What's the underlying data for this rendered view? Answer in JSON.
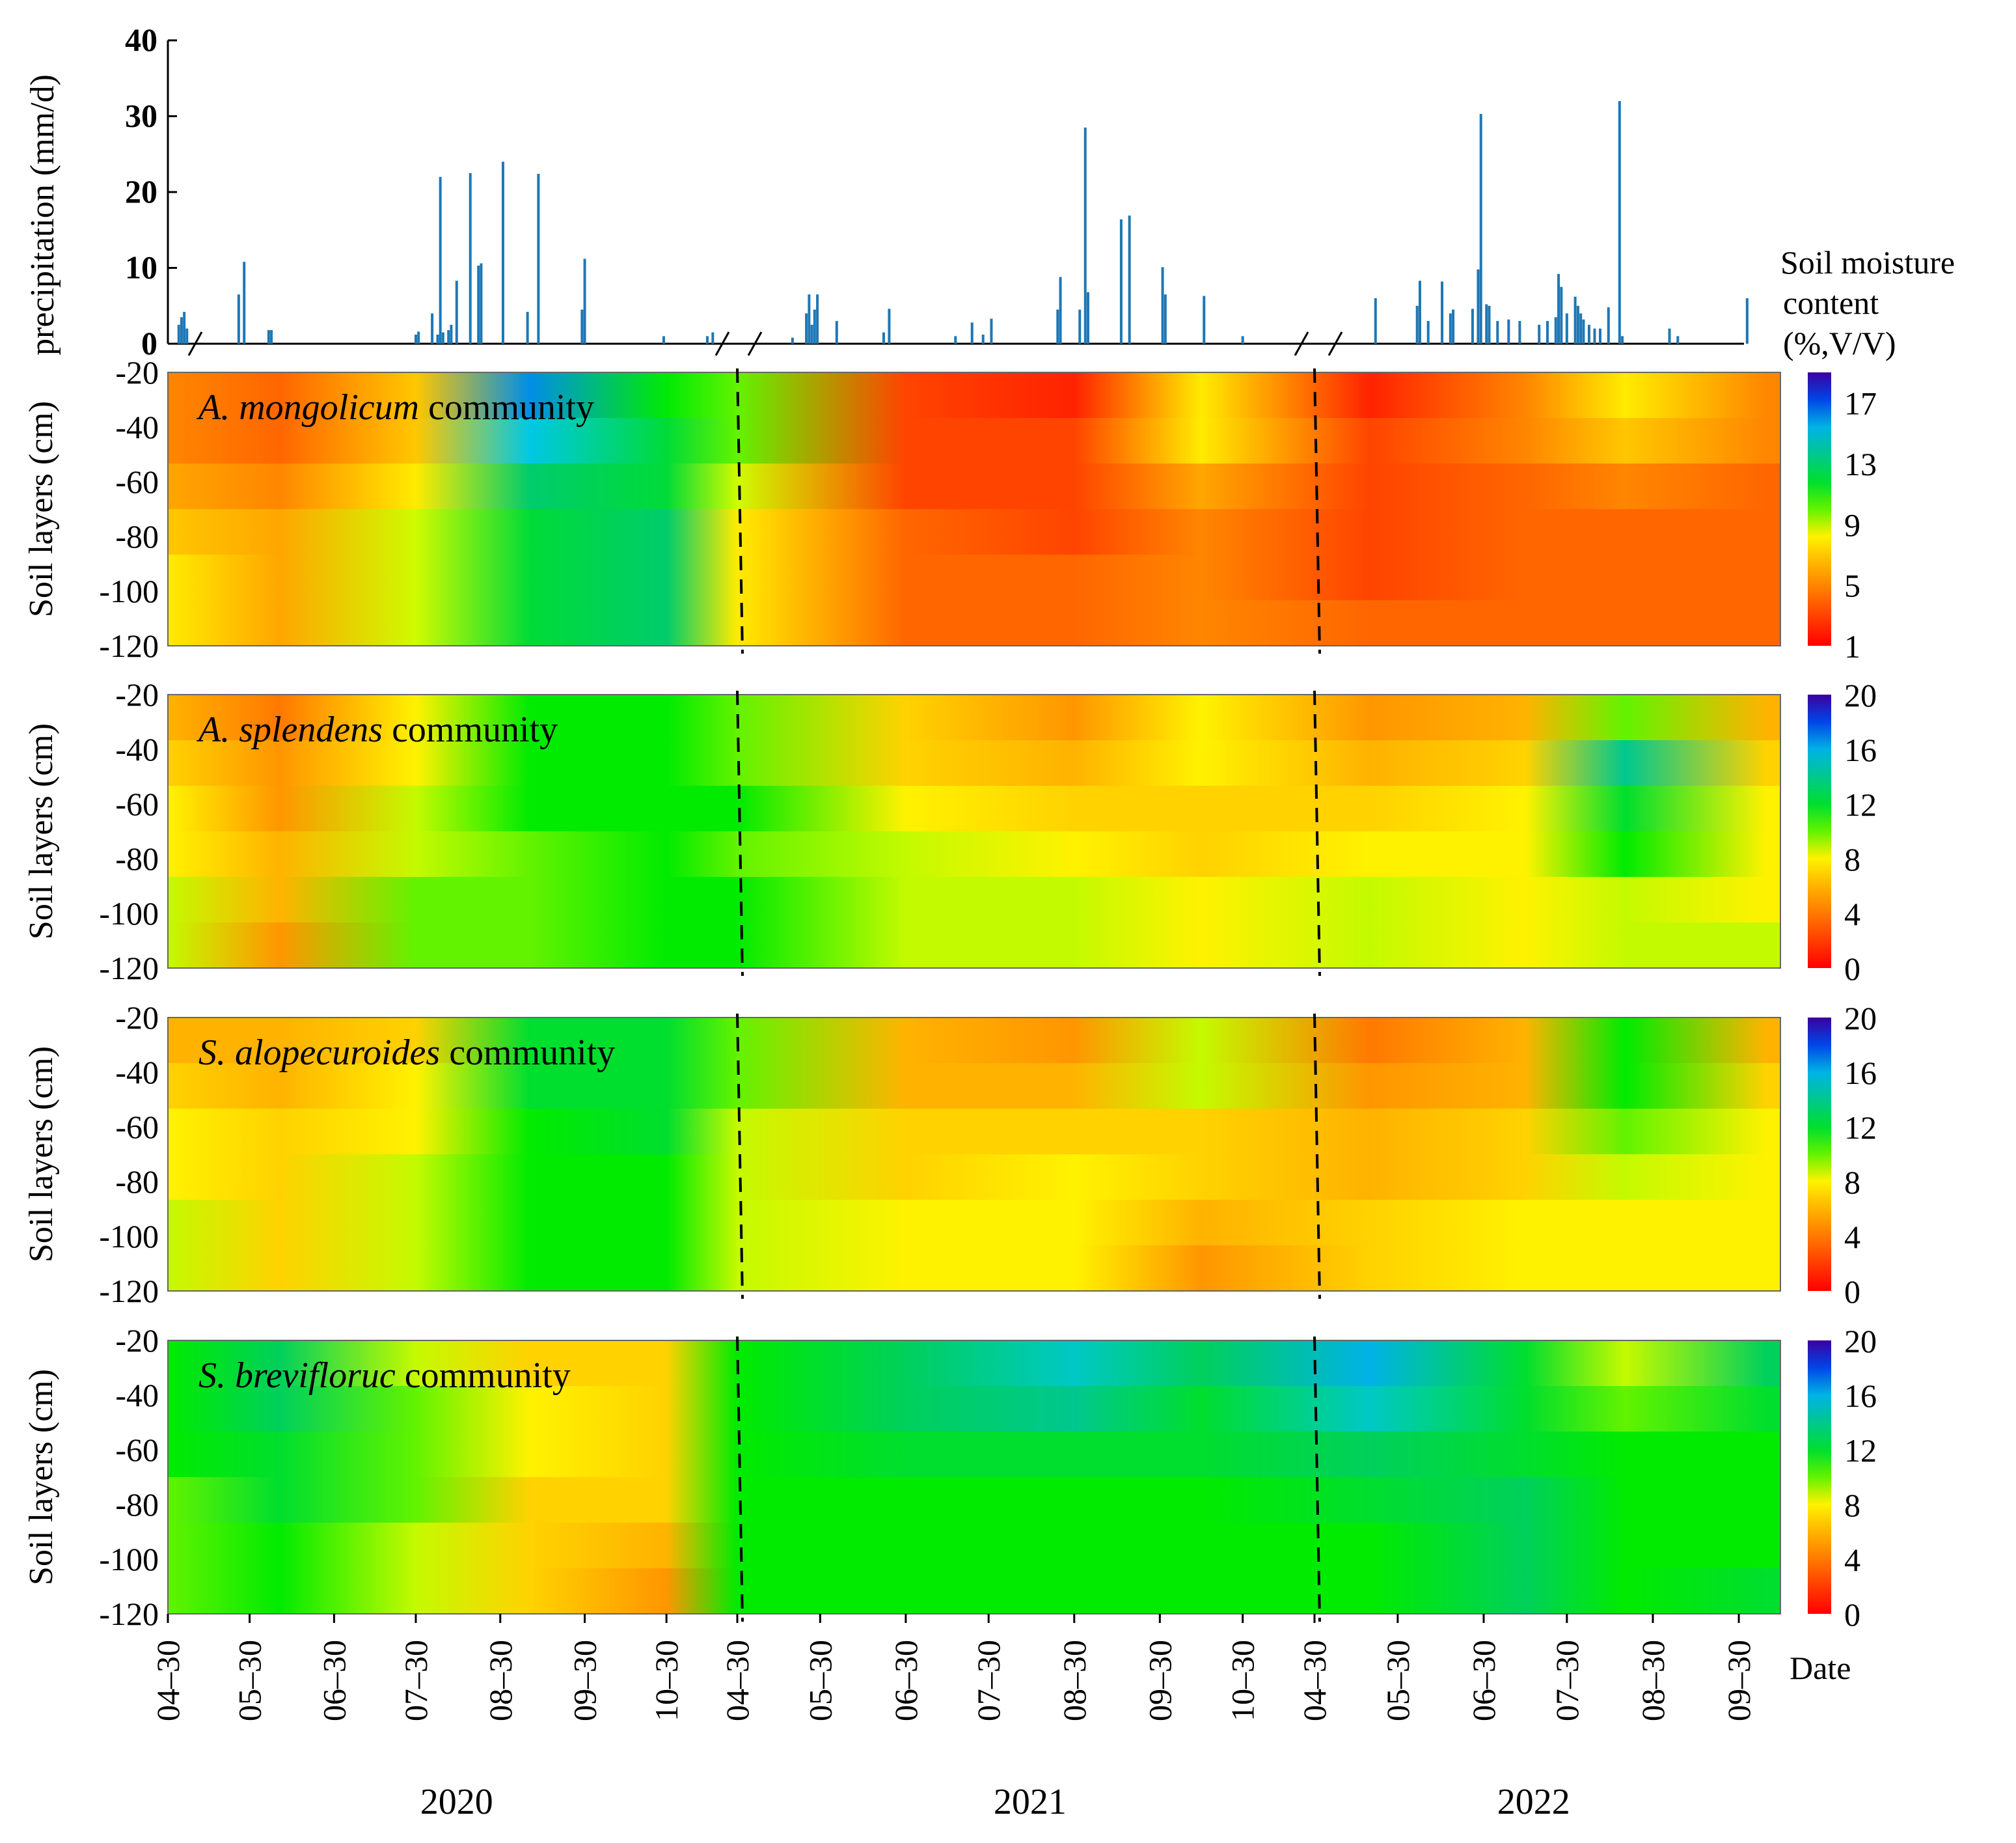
{
  "chart_data": [
    {
      "type": "bar",
      "ylabel": "precipitation (mm/d)",
      "yticks": [
        0,
        10,
        20,
        30,
        40
      ],
      "ylim": [
        0,
        40
      ],
      "segments": [
        {
          "year": "2020",
          "start": "2020-04-30",
          "end": "2020-11-25"
        },
        {
          "year": "2021",
          "start": "2021-04-30",
          "end": "2021-11-25"
        },
        {
          "year": "2022",
          "start": "2022-04-30",
          "end": "2022-10-15"
        }
      ],
      "series": [
        {
          "values": [
            [
              "2020-05-04",
              2.5
            ],
            [
              "2020-05-05",
              3.5
            ],
            [
              "2020-05-06",
              4.2
            ],
            [
              "2020-05-07",
              2.0
            ],
            [
              "2020-05-26",
              6.5
            ],
            [
              "2020-05-28",
              10.8
            ],
            [
              "2020-06-06",
              1.8
            ],
            [
              "2020-06-07",
              1.8
            ],
            [
              "2020-07-30",
              1.2
            ],
            [
              "2020-07-31",
              1.6
            ],
            [
              "2020-08-05",
              4.0
            ],
            [
              "2020-08-07",
              1.2
            ],
            [
              "2020-08-08",
              22.0
            ],
            [
              "2020-08-09",
              1.5
            ],
            [
              "2020-08-11",
              1.8
            ],
            [
              "2020-08-12",
              2.5
            ],
            [
              "2020-08-14",
              8.3
            ],
            [
              "2020-08-19",
              22.5
            ],
            [
              "2020-08-22",
              10.3
            ],
            [
              "2020-08-23",
              10.6
            ],
            [
              "2020-08-31",
              24.0
            ],
            [
              "2020-09-09",
              4.2
            ],
            [
              "2020-09-13",
              22.4
            ],
            [
              "2020-09-29",
              4.5
            ],
            [
              "2020-09-30",
              11.2
            ],
            [
              "2020-10-29",
              1.0
            ],
            [
              "2020-11-14",
              1.0
            ],
            [
              "2020-11-16",
              1.5
            ],
            [
              "2021-05-25",
              4.0
            ],
            [
              "2021-05-26",
              6.5
            ],
            [
              "2021-05-27",
              2.5
            ],
            [
              "2021-05-28",
              4.5
            ],
            [
              "2021-05-29",
              6.5
            ],
            [
              "2021-06-05",
              3.0
            ],
            [
              "2021-06-22",
              1.5
            ],
            [
              "2021-06-24",
              4.6
            ],
            [
              "2021-07-18",
              1.0
            ],
            [
              "2021-07-24",
              2.8
            ],
            [
              "2021-07-28",
              1.2
            ],
            [
              "2021-07-31",
              3.3
            ],
            [
              "2021-08-24",
              4.5
            ],
            [
              "2021-08-25",
              8.8
            ],
            [
              "2021-09-01",
              4.5
            ],
            [
              "2021-09-03",
              28.5
            ],
            [
              "2021-09-04",
              6.8
            ],
            [
              "2021-09-16",
              16.4
            ],
            [
              "2021-09-19",
              16.9
            ],
            [
              "2021-10-01",
              10.1
            ],
            [
              "2021-10-02",
              6.5
            ],
            [
              "2021-10-16",
              6.3
            ],
            [
              "2021-10-30",
              1.0
            ],
            [
              "2021-05-20",
              0.8
            ],
            [
              "2022-05-22",
              6.0
            ],
            [
              "2022-06-06",
              5.0
            ],
            [
              "2022-06-07",
              8.3
            ],
            [
              "2022-06-10",
              3.0
            ],
            [
              "2022-06-15",
              8.2
            ],
            [
              "2022-06-18",
              4.0
            ],
            [
              "2022-06-19",
              4.5
            ],
            [
              "2022-06-26",
              4.6
            ],
            [
              "2022-06-28",
              9.8
            ],
            [
              "2022-06-29",
              30.3
            ],
            [
              "2022-07-01",
              5.2
            ],
            [
              "2022-07-02",
              5.0
            ],
            [
              "2022-07-05",
              3.0
            ],
            [
              "2022-07-09",
              3.2
            ],
            [
              "2022-07-13",
              3.0
            ],
            [
              "2022-07-20",
              2.5
            ],
            [
              "2022-07-23",
              3.0
            ],
            [
              "2022-07-26",
              3.5
            ],
            [
              "2022-07-27",
              9.2
            ],
            [
              "2022-07-28",
              7.5
            ],
            [
              "2022-07-30",
              4.0
            ],
            [
              "2022-08-02",
              6.2
            ],
            [
              "2022-08-03",
              5.0
            ],
            [
              "2022-08-04",
              4.0
            ],
            [
              "2022-08-05",
              3.2
            ],
            [
              "2022-08-07",
              2.5
            ],
            [
              "2022-08-09",
              2.0
            ],
            [
              "2022-08-11",
              2.0
            ],
            [
              "2022-08-14",
              4.8
            ],
            [
              "2022-08-18",
              32.0
            ],
            [
              "2022-08-19",
              1.0
            ],
            [
              "2022-09-05",
              2.0
            ],
            [
              "2022-09-08",
              1.0
            ],
            [
              "2022-10-03",
              6.0
            ]
          ]
        }
      ]
    },
    {
      "type": "heatmap",
      "title": "A. mongolicum community",
      "ylabel": "Soil layers (cm)",
      "yticks": [
        -20,
        -40,
        -60,
        -80,
        -100,
        -120
      ],
      "legend_title": "Soil moisture content (%,V/V)",
      "colorbar_ticks": [
        1,
        5,
        9,
        13,
        17
      ],
      "colorbar_range": [
        1,
        19
      ],
      "moisture_by_layer": {
        "layers": [
          -20,
          -40,
          -60,
          -80,
          -100,
          -120
        ],
        "dates": [
          "2020-04-30",
          "2020-06-10",
          "2020-07-30",
          "2020-09-10",
          "2020-10-30",
          "2021-04-30",
          "2021-06-30",
          "2021-08-30",
          "2021-10-15",
          "2022-05-20",
          "2022-07-15",
          "2022-08-20",
          "2022-10-10"
        ],
        "values": [
          [
            5,
            4,
            7,
            16,
            11,
            10,
            3,
            2,
            8,
            2,
            5,
            8,
            5
          ],
          [
            5,
            4,
            7,
            15,
            12,
            10,
            3,
            3,
            8,
            3,
            5,
            7,
            5
          ],
          [
            6,
            5,
            8,
            13,
            12,
            9,
            3,
            3,
            6,
            3,
            4,
            5,
            4
          ],
          [
            7,
            6,
            9,
            12,
            13,
            8,
            4,
            3,
            5,
            3,
            4,
            4,
            4
          ],
          [
            8,
            6,
            9,
            12,
            13,
            8,
            4,
            4,
            5,
            3,
            4,
            4,
            4
          ],
          [
            8,
            6,
            9,
            12,
            13,
            8,
            4,
            4,
            5,
            4,
            4,
            4,
            4
          ]
        ]
      }
    },
    {
      "type": "heatmap",
      "title": "A. splendens community",
      "ylabel": "Soil layers (cm)",
      "yticks": [
        -20,
        -40,
        -60,
        -80,
        -100,
        -120
      ],
      "colorbar_ticks": [
        0,
        4,
        8,
        12,
        16,
        20
      ],
      "colorbar_range": [
        0,
        20
      ],
      "moisture_by_layer": {
        "layers": [
          -20,
          -40,
          -60,
          -80,
          -100,
          -120
        ],
        "dates": [
          "2020-04-30",
          "2020-06-10",
          "2020-07-30",
          "2020-09-10",
          "2020-10-30",
          "2021-04-30",
          "2021-06-30",
          "2021-08-30",
          "2021-10-15",
          "2022-05-20",
          "2022-07-15",
          "2022-08-20",
          "2022-10-10"
        ],
        "values": [
          [
            6,
            4,
            8,
            11,
            11,
            10,
            7,
            5,
            8,
            5,
            6,
            10,
            6
          ],
          [
            7,
            5,
            8,
            11,
            11,
            10,
            7,
            6,
            8,
            6,
            7,
            14,
            7
          ],
          [
            8,
            5,
            9,
            11,
            11,
            11,
            8,
            7,
            7,
            7,
            8,
            12,
            8
          ],
          [
            8,
            6,
            9,
            10,
            11,
            10,
            9,
            8,
            7,
            8,
            8,
            11,
            8
          ],
          [
            9,
            6,
            10,
            10,
            11,
            11,
            9,
            9,
            8,
            9,
            8,
            9,
            8
          ],
          [
            9,
            5,
            10,
            10,
            11,
            11,
            9,
            9,
            8,
            9,
            8,
            9,
            9
          ]
        ]
      }
    },
    {
      "type": "heatmap",
      "title": "S. alopecuroides community",
      "ylabel": "Soil layers (cm)",
      "yticks": [
        -20,
        -40,
        -60,
        -80,
        -100,
        -120
      ],
      "colorbar_ticks": [
        0,
        4,
        8,
        12,
        16,
        20
      ],
      "colorbar_range": [
        0,
        20
      ],
      "moisture_by_layer": {
        "layers": [
          -20,
          -40,
          -60,
          -80,
          -100,
          -120
        ],
        "dates": [
          "2020-04-30",
          "2020-06-10",
          "2020-07-30",
          "2020-09-10",
          "2020-10-30",
          "2021-04-30",
          "2021-06-30",
          "2021-08-30",
          "2021-10-15",
          "2022-05-20",
          "2022-07-15",
          "2022-08-20",
          "2022-10-10"
        ],
        "values": [
          [
            6,
            6,
            7,
            12,
            12,
            10,
            6,
            5,
            9,
            4,
            6,
            11,
            6
          ],
          [
            7,
            6,
            8,
            12,
            12,
            10,
            6,
            6,
            9,
            5,
            6,
            11,
            7
          ],
          [
            8,
            7,
            8,
            11,
            12,
            9,
            7,
            7,
            7,
            6,
            7,
            10,
            8
          ],
          [
            8,
            7,
            9,
            11,
            11,
            9,
            7,
            8,
            7,
            6,
            7,
            9,
            8
          ],
          [
            9,
            7,
            9,
            11,
            11,
            9,
            8,
            8,
            6,
            7,
            8,
            8,
            8
          ],
          [
            9,
            7,
            9,
            11,
            11,
            9,
            8,
            8,
            5,
            7,
            8,
            8,
            8
          ]
        ]
      }
    },
    {
      "type": "heatmap",
      "title": "S. breviflorис community",
      "ylabel": "Soil layers (cm)",
      "yticks": [
        -20,
        -40,
        -60,
        -80,
        -100,
        -120
      ],
      "colorbar_ticks": [
        0,
        4,
        8,
        12,
        16,
        20
      ],
      "colorbar_range": [
        0,
        20
      ],
      "moisture_by_layer": {
        "layers": [
          -20,
          -40,
          -60,
          -80,
          -100,
          -120
        ],
        "dates": [
          "2020-04-30",
          "2020-06-10",
          "2020-07-30",
          "2020-09-10",
          "2020-10-30",
          "2021-04-30",
          "2021-06-30",
          "2021-08-30",
          "2021-10-15",
          "2022-05-20",
          "2022-07-15",
          "2022-08-20",
          "2022-10-10"
        ],
        "values": [
          [
            11,
            13,
            9,
            7,
            7,
            11,
            13,
            15,
            13,
            16,
            12,
            9,
            13
          ],
          [
            11,
            13,
            10,
            8,
            7,
            11,
            13,
            14,
            12,
            15,
            12,
            10,
            12
          ],
          [
            11,
            12,
            10,
            8,
            7,
            11,
            12,
            12,
            12,
            13,
            12,
            11,
            11
          ],
          [
            10,
            12,
            10,
            7,
            7,
            11,
            11,
            11,
            11,
            12,
            13,
            11,
            11
          ],
          [
            10,
            11,
            9,
            7,
            6,
            11,
            11,
            11,
            11,
            11,
            13,
            11,
            11
          ],
          [
            10,
            11,
            9,
            7,
            5,
            11,
            11,
            11,
            11,
            11,
            13,
            11,
            12
          ]
        ]
      }
    }
  ],
  "axis": {
    "xlabel": "Date",
    "ticks": [
      {
        "label": "04–30",
        "date": "2020-04-30"
      },
      {
        "label": "05–30",
        "date": "2020-05-30"
      },
      {
        "label": "06–30",
        "date": "2020-06-30"
      },
      {
        "label": "07–30",
        "date": "2020-07-30"
      },
      {
        "label": "08–30",
        "date": "2020-08-30"
      },
      {
        "label": "09–30",
        "date": "2020-09-30"
      },
      {
        "label": "10–30",
        "date": "2020-10-30"
      },
      {
        "label": "04–30",
        "date": "2021-04-30"
      },
      {
        "label": "05–30",
        "date": "2021-05-30"
      },
      {
        "label": "06–30",
        "date": "2021-06-30"
      },
      {
        "label": "07–30",
        "date": "2021-07-30"
      },
      {
        "label": "08–30",
        "date": "2021-08-30"
      },
      {
        "label": "09–30",
        "date": "2021-09-30"
      },
      {
        "label": "10–30",
        "date": "2021-10-30"
      },
      {
        "label": "04–30",
        "date": "2022-04-30"
      },
      {
        "label": "05–30",
        "date": "2022-05-30"
      },
      {
        "label": "06–30",
        "date": "2022-06-30"
      },
      {
        "label": "07–30",
        "date": "2022-07-30"
      },
      {
        "label": "08–30",
        "date": "2022-08-30"
      },
      {
        "label": "09–30",
        "date": "2022-09-30"
      }
    ],
    "years": [
      {
        "label": "2020",
        "date": "2020-08-14"
      },
      {
        "label": "2021",
        "date": "2021-08-14"
      },
      {
        "label": "2022",
        "date": "2022-07-18"
      }
    ]
  }
}
